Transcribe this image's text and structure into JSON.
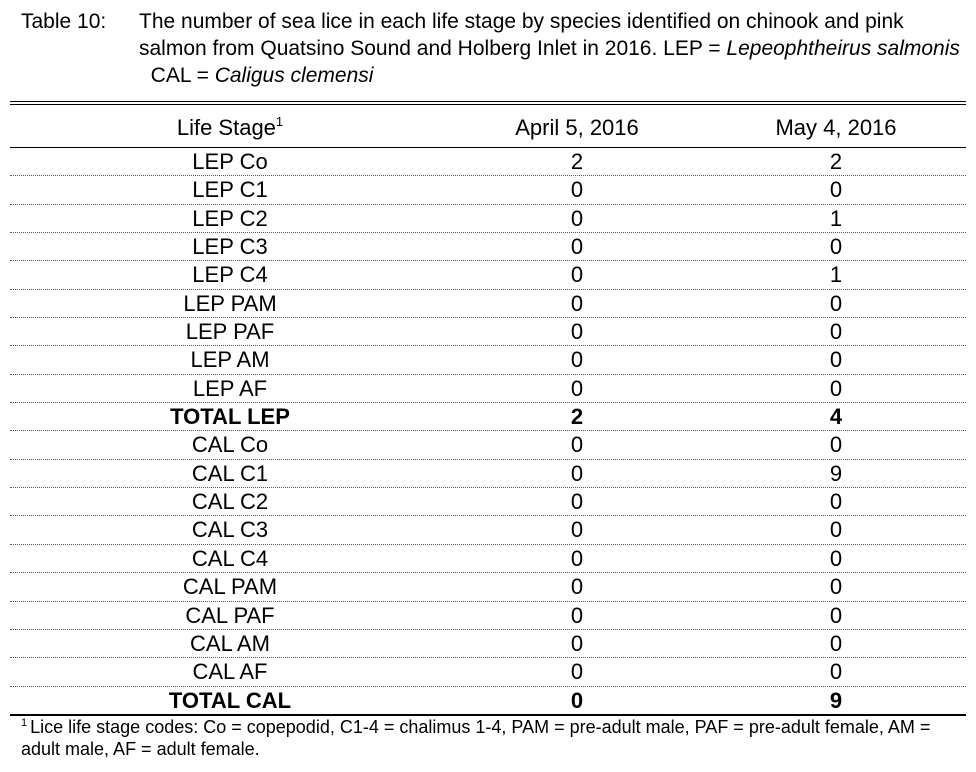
{
  "caption": {
    "label": "Table 10:",
    "text_main": "The number of sea lice in each life stage by species identified on chinook and pink salmon from Quatsino Sound and Holberg Inlet in 2016.  LEP = ",
    "lep_species": "Lepeophtheirus salmonis",
    "cal_prefix": "  CAL = ",
    "cal_species": "Caligus clemensi"
  },
  "table": {
    "headers": {
      "life_stage": "Life Stage",
      "life_stage_footnote_mark": "1",
      "col_april": "April 5, 2016",
      "col_may": "May 4, 2016"
    },
    "rows": [
      {
        "stage": "LEP Co",
        "april": "2",
        "may": "2"
      },
      {
        "stage": "LEP C1",
        "april": "0",
        "may": "0"
      },
      {
        "stage": "LEP C2",
        "april": "0",
        "may": "1"
      },
      {
        "stage": "LEP C3",
        "april": "0",
        "may": "0"
      },
      {
        "stage": "LEP C4",
        "april": "0",
        "may": "1"
      },
      {
        "stage": "LEP PAM",
        "april": "0",
        "may": "0"
      },
      {
        "stage": "LEP PAF",
        "april": "0",
        "may": "0"
      },
      {
        "stage": "LEP AM",
        "april": "0",
        "may": "0"
      },
      {
        "stage": "LEP AF",
        "april": "0",
        "may": "0"
      },
      {
        "stage": "TOTAL LEP",
        "april": "2",
        "may": "4"
      },
      {
        "stage": "CAL Co",
        "april": "0",
        "may": "0"
      },
      {
        "stage": "CAL C1",
        "april": "0",
        "may": "9"
      },
      {
        "stage": "CAL C2",
        "april": "0",
        "may": "0"
      },
      {
        "stage": "CAL C3",
        "april": "0",
        "may": "0"
      },
      {
        "stage": "CAL C4",
        "april": "0",
        "may": "0"
      },
      {
        "stage": "CAL PAM",
        "april": "0",
        "may": "0"
      },
      {
        "stage": "CAL PAF",
        "april": "0",
        "may": "0"
      },
      {
        "stage": "CAL AM",
        "april": "0",
        "may": "0"
      },
      {
        "stage": "CAL AF",
        "april": "0",
        "may": "0"
      },
      {
        "stage": "TOTAL CAL",
        "april": "0",
        "may": "9"
      }
    ]
  },
  "footnote": {
    "mark": "1",
    "text": "Lice life stage codes: Co = copepodid, C1-4 = chalimus 1-4, PAM = pre-adult male, PAF = pre-adult female, AM = adult male, AF = adult female."
  }
}
